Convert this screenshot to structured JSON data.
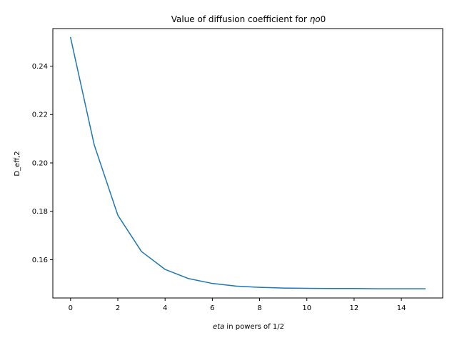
{
  "chart_data": {
    "type": "line",
    "title_prefix": "Value of diffusion coefficient for ",
    "title_symbol": "ηo",
    "title_suffix": "0",
    "xlabel_italic": "eta",
    "xlabel_rest": " in powers of 1/2",
    "ylabel": "D_eff,2",
    "xlim": [
      -0.75,
      15.75
    ],
    "ylim": [
      0.1442,
      0.2555
    ],
    "xticks": [
      0,
      2,
      4,
      6,
      8,
      10,
      12,
      14
    ],
    "xtick_labels": [
      "0",
      "2",
      "4",
      "6",
      "8",
      "10",
      "12",
      "14"
    ],
    "yticks": [
      0.16,
      0.18,
      0.2,
      0.22,
      0.24
    ],
    "ytick_labels": [
      "0.16",
      "0.18",
      "0.20",
      "0.22",
      "0.24"
    ],
    "grid": false,
    "series": [
      {
        "color": "#1f77b4",
        "x": [
          0,
          1,
          2,
          3,
          4,
          5,
          6,
          7,
          8,
          9,
          10,
          11,
          12,
          13,
          14,
          15
        ],
        "y": [
          0.2518,
          0.2075,
          0.1784,
          0.1634,
          0.156,
          0.1522,
          0.1502,
          0.1491,
          0.1486,
          0.1483,
          0.1482,
          0.1481,
          0.1481,
          0.148,
          0.148,
          0.148
        ]
      }
    ]
  }
}
